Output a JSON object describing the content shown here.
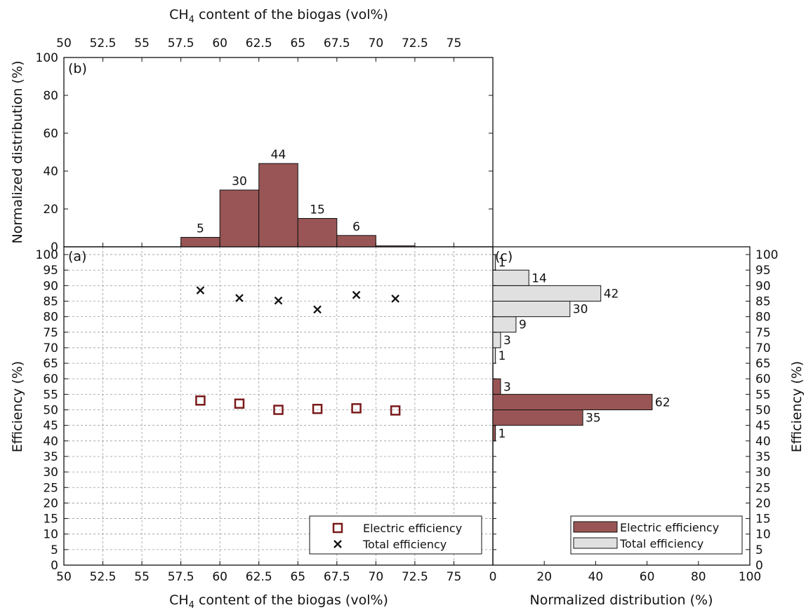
{
  "colors": {
    "electric": "#995555",
    "total": "#e0e0e0",
    "marker_electric": "#7a1a1a",
    "marker_total": "#111111",
    "axis": "#111111",
    "grid": "#9a9a9a"
  },
  "chart_data": [
    {
      "panel": "b",
      "type": "bar",
      "panel_label": "(b)",
      "xlabel_main": "CH",
      "xlabel_sub": "4",
      "xlabel_rest": " content of the biogas (vol%)",
      "ylabel": "Normalized distribution (%)",
      "xlim": [
        50,
        77.5
      ],
      "ylim": [
        0,
        100
      ],
      "x_ticks": [
        50,
        52.5,
        55,
        57.5,
        60,
        62.5,
        65,
        67.5,
        70,
        72.5,
        75
      ],
      "x_tick_labels": [
        "50",
        "52.5",
        "55",
        "57.5",
        "60",
        "62.5",
        "65",
        "67.5",
        "70",
        "72.5",
        "75"
      ],
      "y_ticks": [
        0,
        20,
        40,
        60,
        80,
        100
      ],
      "y_tick_labels": [
        "0",
        "20",
        "40",
        "60",
        "80",
        "100"
      ],
      "grid": false,
      "bins": [
        {
          "from": 57.5,
          "to": 60,
          "value": 5,
          "label": "5"
        },
        {
          "from": 60,
          "to": 62.5,
          "value": 30,
          "label": "30"
        },
        {
          "from": 62.5,
          "to": 65,
          "value": 44,
          "label": "44"
        },
        {
          "from": 65,
          "to": 67.5,
          "value": 15,
          "label": "15"
        },
        {
          "from": 67.5,
          "to": 70,
          "value": 6,
          "label": "6"
        },
        {
          "from": 70,
          "to": 72.5,
          "value": 0.5,
          "label": ""
        }
      ]
    },
    {
      "panel": "a",
      "type": "scatter",
      "panel_label": "(a)",
      "xlabel_main": "CH",
      "xlabel_sub": "4",
      "xlabel_rest": " content of the biogas (vol%)",
      "ylabel": "Efficiency (%)",
      "xlim": [
        50,
        77.5
      ],
      "ylim": [
        0,
        102.5
      ],
      "x_ticks": [
        50,
        52.5,
        55,
        57.5,
        60,
        62.5,
        65,
        67.5,
        70,
        72.5,
        75
      ],
      "x_tick_labels": [
        "50",
        "52.5",
        "55",
        "57.5",
        "60",
        "62.5",
        "65",
        "67.5",
        "70",
        "72.5",
        "75"
      ],
      "y_ticks": [
        0,
        5,
        10,
        15,
        20,
        25,
        30,
        35,
        40,
        45,
        50,
        55,
        60,
        65,
        70,
        75,
        80,
        85,
        90,
        95,
        100
      ],
      "y_tick_labels": [
        "0",
        "5",
        "10",
        "15",
        "20",
        "25",
        "30",
        "35",
        "40",
        "45",
        "50",
        "55",
        "60",
        "65",
        "70",
        "75",
        "80",
        "85",
        "90",
        "95",
        "100"
      ],
      "grid": true,
      "legend_position": "bottom-right",
      "series": [
        {
          "name": "Electric efficiency",
          "marker": "square",
          "x": [
            58.75,
            61.25,
            63.75,
            66.25,
            68.75,
            71.25
          ],
          "y": [
            53,
            52,
            50,
            50.3,
            50.5,
            49.8
          ]
        },
        {
          "name": "Total efficiency",
          "marker": "x",
          "x": [
            58.75,
            61.25,
            63.75,
            66.25,
            68.75,
            71.25
          ],
          "y": [
            88.5,
            86,
            85.2,
            82.3,
            87,
            85.8
          ]
        }
      ]
    },
    {
      "panel": "c",
      "type": "bar",
      "orientation": "horizontal",
      "panel_label": "(c)",
      "xlabel": "Normalized distribution (%)",
      "ylabel": "Efficiency (%)",
      "xlim": [
        0,
        100
      ],
      "ylim": [
        0,
        102.5
      ],
      "x_ticks": [
        0,
        20,
        40,
        60,
        80,
        100
      ],
      "x_tick_labels": [
        "0",
        "20",
        "40",
        "60",
        "80",
        "100"
      ],
      "y_ticks": [
        0,
        5,
        10,
        15,
        20,
        25,
        30,
        35,
        40,
        45,
        50,
        55,
        60,
        65,
        70,
        75,
        80,
        85,
        90,
        95,
        100
      ],
      "y_tick_labels": [
        "0",
        "5",
        "10",
        "15",
        "20",
        "25",
        "30",
        "35",
        "40",
        "45",
        "50",
        "55",
        "60",
        "65",
        "70",
        "75",
        "80",
        "85",
        "90",
        "95",
        "100"
      ],
      "grid": false,
      "legend_position": "bottom-right",
      "series": [
        {
          "name": "Electric efficiency",
          "bins": [
            {
              "from": 40,
              "to": 45,
              "value": 1,
              "label": "1"
            },
            {
              "from": 45,
              "to": 50,
              "value": 35,
              "label": "35"
            },
            {
              "from": 50,
              "to": 55,
              "value": 62,
              "label": "62"
            },
            {
              "from": 55,
              "to": 60,
              "value": 3,
              "label": "3"
            }
          ]
        },
        {
          "name": "Total efficiency",
          "bins": [
            {
              "from": 65,
              "to": 70,
              "value": 1,
              "label": "1"
            },
            {
              "from": 70,
              "to": 75,
              "value": 3,
              "label": "3"
            },
            {
              "from": 75,
              "to": 80,
              "value": 9,
              "label": "9"
            },
            {
              "from": 80,
              "to": 85,
              "value": 30,
              "label": "30"
            },
            {
              "from": 85,
              "to": 90,
              "value": 42,
              "label": "42"
            },
            {
              "from": 90,
              "to": 95,
              "value": 14,
              "label": "14"
            },
            {
              "from": 95,
              "to": 100,
              "value": 1,
              "label": "1"
            }
          ]
        }
      ]
    }
  ]
}
